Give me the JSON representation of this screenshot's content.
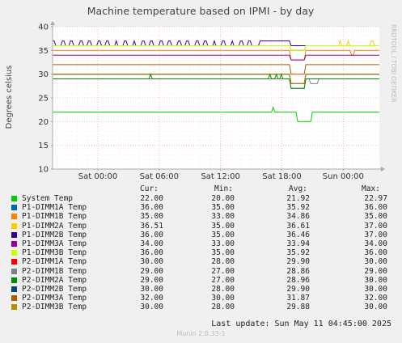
{
  "chart_data": {
    "type": "line",
    "title": "Machine temperature based on IPMI - by day",
    "ylabel": "Degrees celsius",
    "watermark": "RRDTOOL / TOBI OETIKER",
    "ylim": [
      10,
      40
    ],
    "yticks": [
      10,
      15,
      20,
      25,
      30,
      35,
      40
    ],
    "xtick_labels": [
      "Sat 00:00",
      "Sat 06:00",
      "Sat 12:00",
      "Sat 18:00",
      "Sun 00:00"
    ],
    "xtick_fracs": [
      0.1386,
      0.3263,
      0.514,
      0.7017,
      0.8894
    ],
    "x_hours_span": 32,
    "columns": [
      "Cur:",
      "Min:",
      "Avg:",
      "Max:"
    ],
    "series": [
      {
        "name": "System Temp",
        "color": "#00cc00",
        "cur": "22.00",
        "min": "20.00",
        "avg": "21.92",
        "max": "22.97",
        "base": 22,
        "events": [
          {
            "x": 0.6725,
            "w": 0.006,
            "v": 23
          },
          {
            "x": 0.7475,
            "w": 0.045,
            "v": 20
          }
        ]
      },
      {
        "name": "P1-DIMM1A Temp",
        "color": "#0066b3",
        "cur": "36.00",
        "min": "35.00",
        "avg": "35.92",
        "max": "36.00",
        "base": 36,
        "events": [
          {
            "x": 0.727,
            "w": 0.045,
            "v": 35
          }
        ]
      },
      {
        "name": "P1-DIMM1B Temp",
        "color": "#ff8000",
        "cur": "35.00",
        "min": "33.00",
        "avg": "34.86",
        "max": "35.00",
        "base": 35,
        "events": [
          {
            "x": 0.727,
            "w": 0.043,
            "v": 33
          },
          {
            "x": 0.915,
            "w": 0.006,
            "v": 34
          }
        ]
      },
      {
        "name": "P1-DIMM2A Temp",
        "color": "#ffcc00",
        "cur": "36.51",
        "min": "35.00",
        "avg": "36.61",
        "max": "37.00",
        "base": 36,
        "events": [
          {
            "x": 0.88,
            "w": 0.004,
            "v": 37
          },
          {
            "x": 0.905,
            "w": 0.004,
            "v": 37
          },
          {
            "x": 0.975,
            "w": 0.006,
            "v": 37
          },
          {
            "x": 0.727,
            "w": 0.043,
            "v": 35
          }
        ]
      },
      {
        "name": "P1-DIMM2B Temp",
        "color": "#330099",
        "cur": "36.00",
        "min": "35.00",
        "avg": "36.46",
        "max": "37.00",
        "base": 36,
        "osc": 37,
        "events": []
      },
      {
        "name": "P1-DIMM3A Temp",
        "color": "#990099",
        "cur": "34.00",
        "min": "33.00",
        "avg": "33.94",
        "max": "34.00",
        "base": 34,
        "events": [
          {
            "x": 0.727,
            "w": 0.043,
            "v": 33
          }
        ]
      },
      {
        "name": "P1-DIMM3B Temp",
        "color": "#ccff00",
        "cur": "36.00",
        "min": "35.00",
        "avg": "35.92",
        "max": "36.00",
        "base": 36,
        "events": [
          {
            "x": 0.727,
            "w": 0.045,
            "v": 35
          }
        ]
      },
      {
        "name": "P2-DIMM1A Temp",
        "color": "#ff0000",
        "cur": "30.00",
        "min": "28.00",
        "avg": "29.90",
        "max": "30.00",
        "base": 30,
        "events": [
          {
            "x": 0.727,
            "w": 0.045,
            "v": 28
          }
        ]
      },
      {
        "name": "P2-DIMM1B Temp",
        "color": "#808080",
        "cur": "29.00",
        "min": "27.00",
        "avg": "28.86",
        "max": "29.00",
        "base": 29,
        "events": [
          {
            "x": 0.727,
            "w": 0.045,
            "v": 27
          },
          {
            "x": 0.786,
            "w": 0.025,
            "v": 28
          }
        ]
      },
      {
        "name": "P2-DIMM2A Temp",
        "color": "#008f00",
        "cur": "29.00",
        "min": "27.00",
        "avg": "28.96",
        "max": "30.00",
        "base": 29,
        "events": [
          {
            "x": 0.297,
            "w": 0.006,
            "v": 30
          },
          {
            "x": 0.6615,
            "w": 0.004,
            "v": 30
          },
          {
            "x": 0.685,
            "w": 0.004,
            "v": 30
          },
          {
            "x": 0.7,
            "w": 0.004,
            "v": 30
          },
          {
            "x": 0.727,
            "w": 0.045,
            "v": 27
          }
        ]
      },
      {
        "name": "P2-DIMM2B Temp",
        "color": "#00487d",
        "cur": "30.00",
        "min": "28.00",
        "avg": "29.90",
        "max": "30.00",
        "base": 30,
        "events": [
          {
            "x": 0.727,
            "w": 0.045,
            "v": 28
          }
        ]
      },
      {
        "name": "P2-DIMM3A Temp",
        "color": "#b35a00",
        "cur": "32.00",
        "min": "30.00",
        "avg": "31.87",
        "max": "32.00",
        "base": 32,
        "events": [
          {
            "x": 0.727,
            "w": 0.045,
            "v": 30
          }
        ]
      },
      {
        "name": "P2-DIMM3B Temp",
        "color": "#b38f00",
        "cur": "30.00",
        "min": "28.00",
        "avg": "29.88",
        "max": "30.00",
        "base": 30,
        "events": [
          {
            "x": 0.727,
            "w": 0.045,
            "v": 28
          }
        ]
      }
    ]
  },
  "footer": {
    "last_update": "Last update:  Sun May 11 04:45:00 2025",
    "munin_version": "Munin 2.0.33-1"
  }
}
